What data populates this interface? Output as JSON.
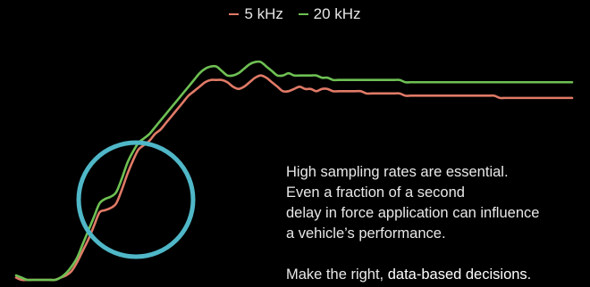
{
  "chart_data": {
    "type": "line",
    "title": "",
    "xlabel": "",
    "ylabel": "",
    "x": [
      0,
      1,
      2,
      3,
      4,
      5,
      6,
      7,
      8,
      9,
      10,
      11,
      12,
      13,
      14,
      15,
      16,
      17,
      18,
      19,
      20,
      21,
      22,
      23,
      24,
      25,
      26,
      27,
      28,
      29,
      30,
      31,
      32,
      33,
      34,
      35,
      36,
      37,
      38,
      39,
      40,
      41,
      42,
      43,
      44,
      45,
      46,
      47,
      48,
      49,
      50,
      51,
      52,
      53,
      54,
      55,
      56,
      57,
      58,
      59,
      60,
      61,
      62,
      63,
      64,
      65,
      66,
      67,
      68,
      69,
      70,
      71,
      72,
      73,
      74,
      75,
      76,
      77,
      78,
      79,
      80,
      81,
      82,
      83,
      84,
      85,
      86,
      87,
      88,
      89,
      90,
      91,
      92,
      93,
      94,
      95,
      96,
      97,
      98,
      99,
      100
    ],
    "xlim": [
      0,
      100
    ],
    "ylim": [
      0,
      100
    ],
    "grid": false,
    "legend_position": "top-center",
    "series": [
      {
        "name": "5 kHz",
        "color": "#e07a67",
        "values": [
          1,
          0,
          0,
          0,
          0,
          0,
          0,
          0,
          1,
          2,
          4,
          8,
          13,
          18,
          24,
          30,
          31,
          32,
          34,
          40,
          47,
          53,
          58,
          60,
          62,
          65,
          67,
          70,
          73,
          76,
          79,
          82,
          84,
          86,
          88,
          89,
          89,
          89,
          88,
          86,
          85,
          86,
          88,
          90,
          91,
          90,
          88,
          86,
          84,
          84,
          85,
          86,
          85,
          85,
          84,
          85,
          85,
          84,
          84,
          84,
          84,
          84,
          84,
          83,
          83,
          83,
          83,
          83,
          83,
          83,
          82,
          82,
          82,
          82,
          82,
          82,
          82,
          82,
          82,
          82,
          82,
          82,
          82,
          82,
          82,
          82,
          82,
          81,
          81,
          81,
          81,
          81,
          81,
          81,
          81,
          81,
          81,
          81,
          81,
          81,
          81
        ]
      },
      {
        "name": "20 kHz",
        "color": "#6ec053",
        "values": [
          2,
          1,
          0,
          0,
          0,
          0,
          0,
          0,
          1,
          3,
          6,
          10,
          16,
          22,
          28,
          34,
          36,
          37,
          39,
          45,
          52,
          57,
          61,
          63,
          65,
          68,
          71,
          74,
          77,
          80,
          83,
          86,
          89,
          92,
          94,
          95,
          95,
          93,
          91,
          91,
          92,
          94,
          96,
          97,
          97,
          95,
          93,
          91,
          91,
          92,
          91,
          91,
          91,
          91,
          91,
          90,
          90,
          89,
          89,
          89,
          89,
          89,
          89,
          89,
          89,
          89,
          89,
          89,
          89,
          89,
          88,
          88,
          88,
          88,
          88,
          88,
          88,
          88,
          88,
          88,
          88,
          88,
          88,
          88,
          88,
          88,
          88,
          88,
          88,
          88,
          88,
          88,
          88,
          88,
          88,
          88,
          88,
          88,
          88,
          88,
          88
        ]
      }
    ],
    "annotations": [
      {
        "lines": [
          "High sampling rates are essential.",
          "Even a fraction of a second",
          "delay in force application can influence",
          "a vehicle’s performance."
        ],
        "cta_prefix": "Make the right, ",
        "cta_emphasis": "data-based decisions",
        "cta_suffix": "."
      }
    ],
    "highlight_circle_color": "#4fb7c7"
  }
}
